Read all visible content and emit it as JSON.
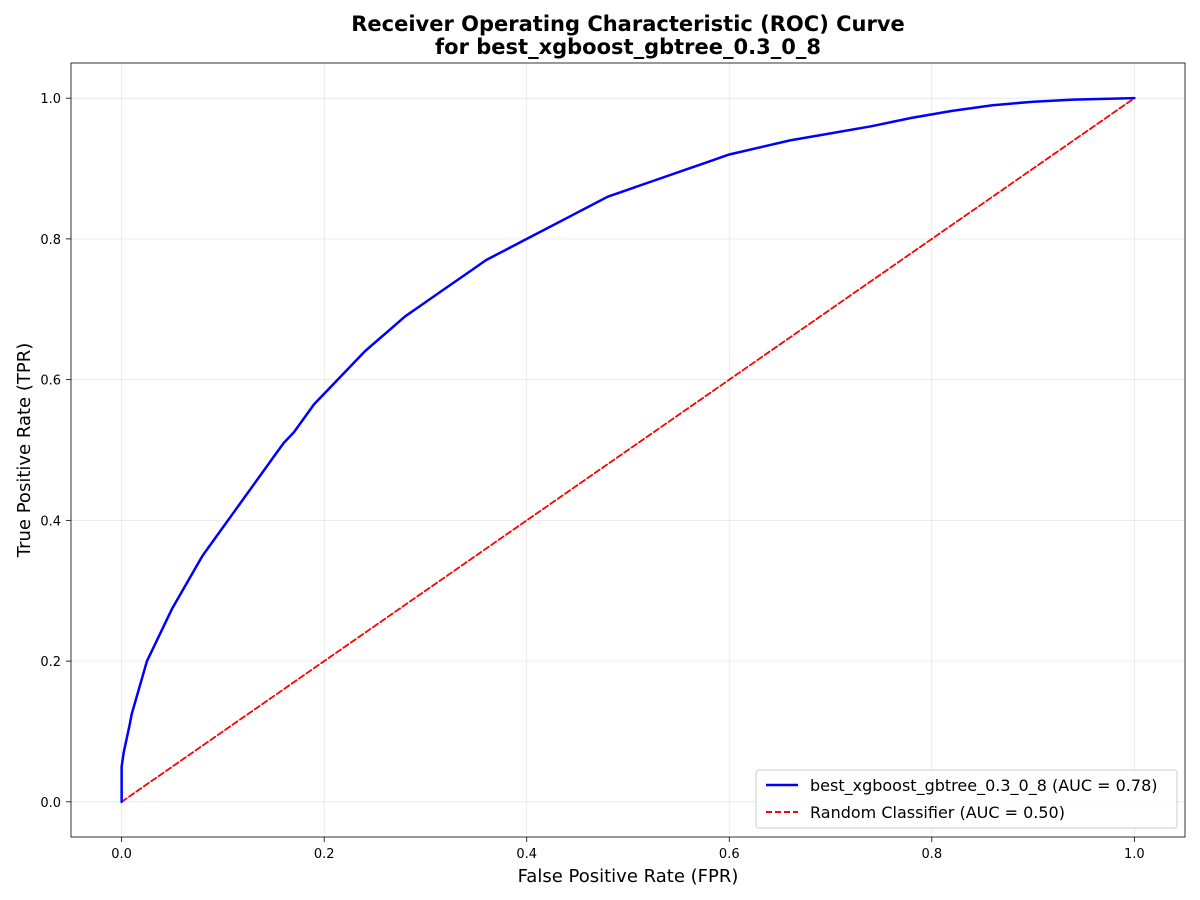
{
  "chart_data": {
    "type": "line",
    "title": [
      "Receiver Operating Characteristic (ROC) Curve",
      "for best_xgboost_gbtree_0.3_0_8"
    ],
    "xlabel": "False Positive Rate (FPR)",
    "ylabel": "True Positive Rate (TPR)",
    "xlim": [
      -0.05,
      1.05
    ],
    "ylim": [
      -0.05,
      1.05
    ],
    "xticks": [
      0.0,
      0.2,
      0.4,
      0.6,
      0.8,
      1.0
    ],
    "yticks": [
      0.0,
      0.2,
      0.4,
      0.6,
      0.8,
      1.0
    ],
    "xtick_labels": [
      "0.0",
      "0.2",
      "0.4",
      "0.6",
      "0.8",
      "1.0"
    ],
    "ytick_labels": [
      "0.0",
      "0.2",
      "0.4",
      "0.6",
      "0.8",
      "1.0"
    ],
    "grid": true,
    "legend_position": "lower-right",
    "series": [
      {
        "name": "best_xgboost_gbtree_0.3_0_8 (AUC = 0.78)",
        "style": "solid",
        "color": "#0000ff",
        "x": [
          0.0,
          0.0,
          0.002,
          0.005,
          0.008,
          0.01,
          0.015,
          0.02,
          0.025,
          0.03,
          0.04,
          0.05,
          0.06,
          0.07,
          0.08,
          0.09,
          0.1,
          0.11,
          0.12,
          0.13,
          0.14,
          0.15,
          0.16,
          0.17,
          0.18,
          0.19,
          0.2,
          0.22,
          0.24,
          0.26,
          0.28,
          0.3,
          0.32,
          0.34,
          0.36,
          0.38,
          0.4,
          0.42,
          0.44,
          0.46,
          0.48,
          0.5,
          0.52,
          0.55,
          0.58,
          0.6,
          0.63,
          0.66,
          0.7,
          0.74,
          0.78,
          0.82,
          0.86,
          0.9,
          0.94,
          0.97,
          1.0
        ],
        "y": [
          0.0,
          0.05,
          0.07,
          0.09,
          0.11,
          0.125,
          0.15,
          0.175,
          0.2,
          0.215,
          0.245,
          0.275,
          0.3,
          0.325,
          0.35,
          0.37,
          0.39,
          0.41,
          0.43,
          0.45,
          0.47,
          0.49,
          0.51,
          0.525,
          0.545,
          0.565,
          0.58,
          0.61,
          0.64,
          0.665,
          0.69,
          0.71,
          0.73,
          0.75,
          0.77,
          0.785,
          0.8,
          0.815,
          0.83,
          0.845,
          0.86,
          0.87,
          0.88,
          0.895,
          0.91,
          0.92,
          0.93,
          0.94,
          0.95,
          0.96,
          0.972,
          0.982,
          0.99,
          0.995,
          0.998,
          0.999,
          1.0
        ]
      },
      {
        "name": "Random Classifier (AUC = 0.50)",
        "style": "dashed",
        "color": "#ff0000",
        "x": [
          0.0,
          1.0
        ],
        "y": [
          0.0,
          1.0
        ]
      }
    ]
  }
}
